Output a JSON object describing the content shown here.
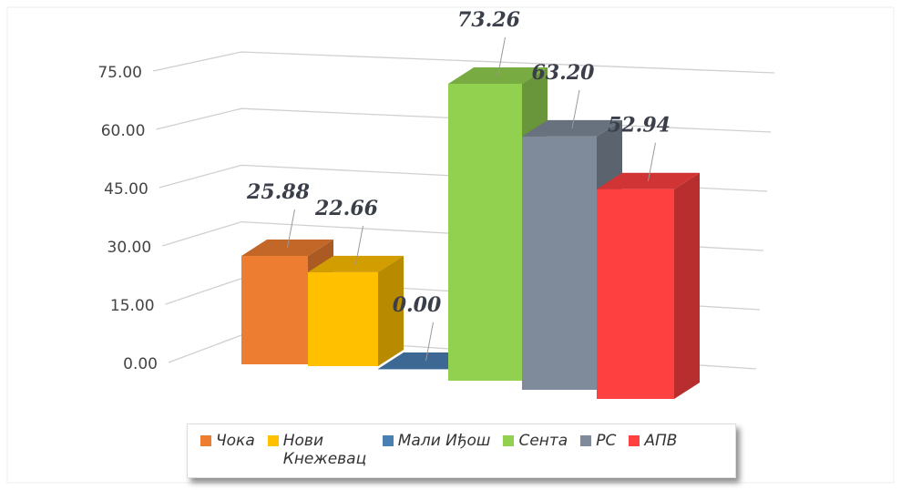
{
  "chart_data": {
    "type": "bar",
    "series": [
      {
        "name": "Чока",
        "color": "#ed7d31",
        "values": [
          25.88
        ],
        "value_labels": [
          "25.88"
        ]
      },
      {
        "name": "Нови Кнежевац",
        "color": "#ffc000",
        "values": [
          22.66
        ],
        "value_labels": [
          "22.66"
        ]
      },
      {
        "name": "Мали Иђош",
        "color": "#4a7fb3",
        "values": [
          0
        ],
        "value_labels": [
          "0.00"
        ]
      },
      {
        "name": "Сента",
        "color": "#92d050",
        "values": [
          73.26
        ],
        "value_labels": [
          "73.26"
        ]
      },
      {
        "name": "РС",
        "color": "#7f8a9a",
        "values": [
          63.2
        ],
        "value_labels": [
          "63.20"
        ]
      },
      {
        "name": "АПВ",
        "color": "#ff4040",
        "values": [
          52.94
        ],
        "value_labels": [
          "52.94"
        ]
      }
    ],
    "ylim": [
      0,
      75
    ],
    "yticks": [
      {
        "value": 0,
        "label": "0.00"
      },
      {
        "value": 15,
        "label": "15.00"
      },
      {
        "value": 30,
        "label": "30.00"
      },
      {
        "value": 45,
        "label": "45.00"
      },
      {
        "value": 60,
        "label": "60.00"
      },
      {
        "value": 75,
        "label": "75.00"
      }
    ],
    "grid": true
  }
}
